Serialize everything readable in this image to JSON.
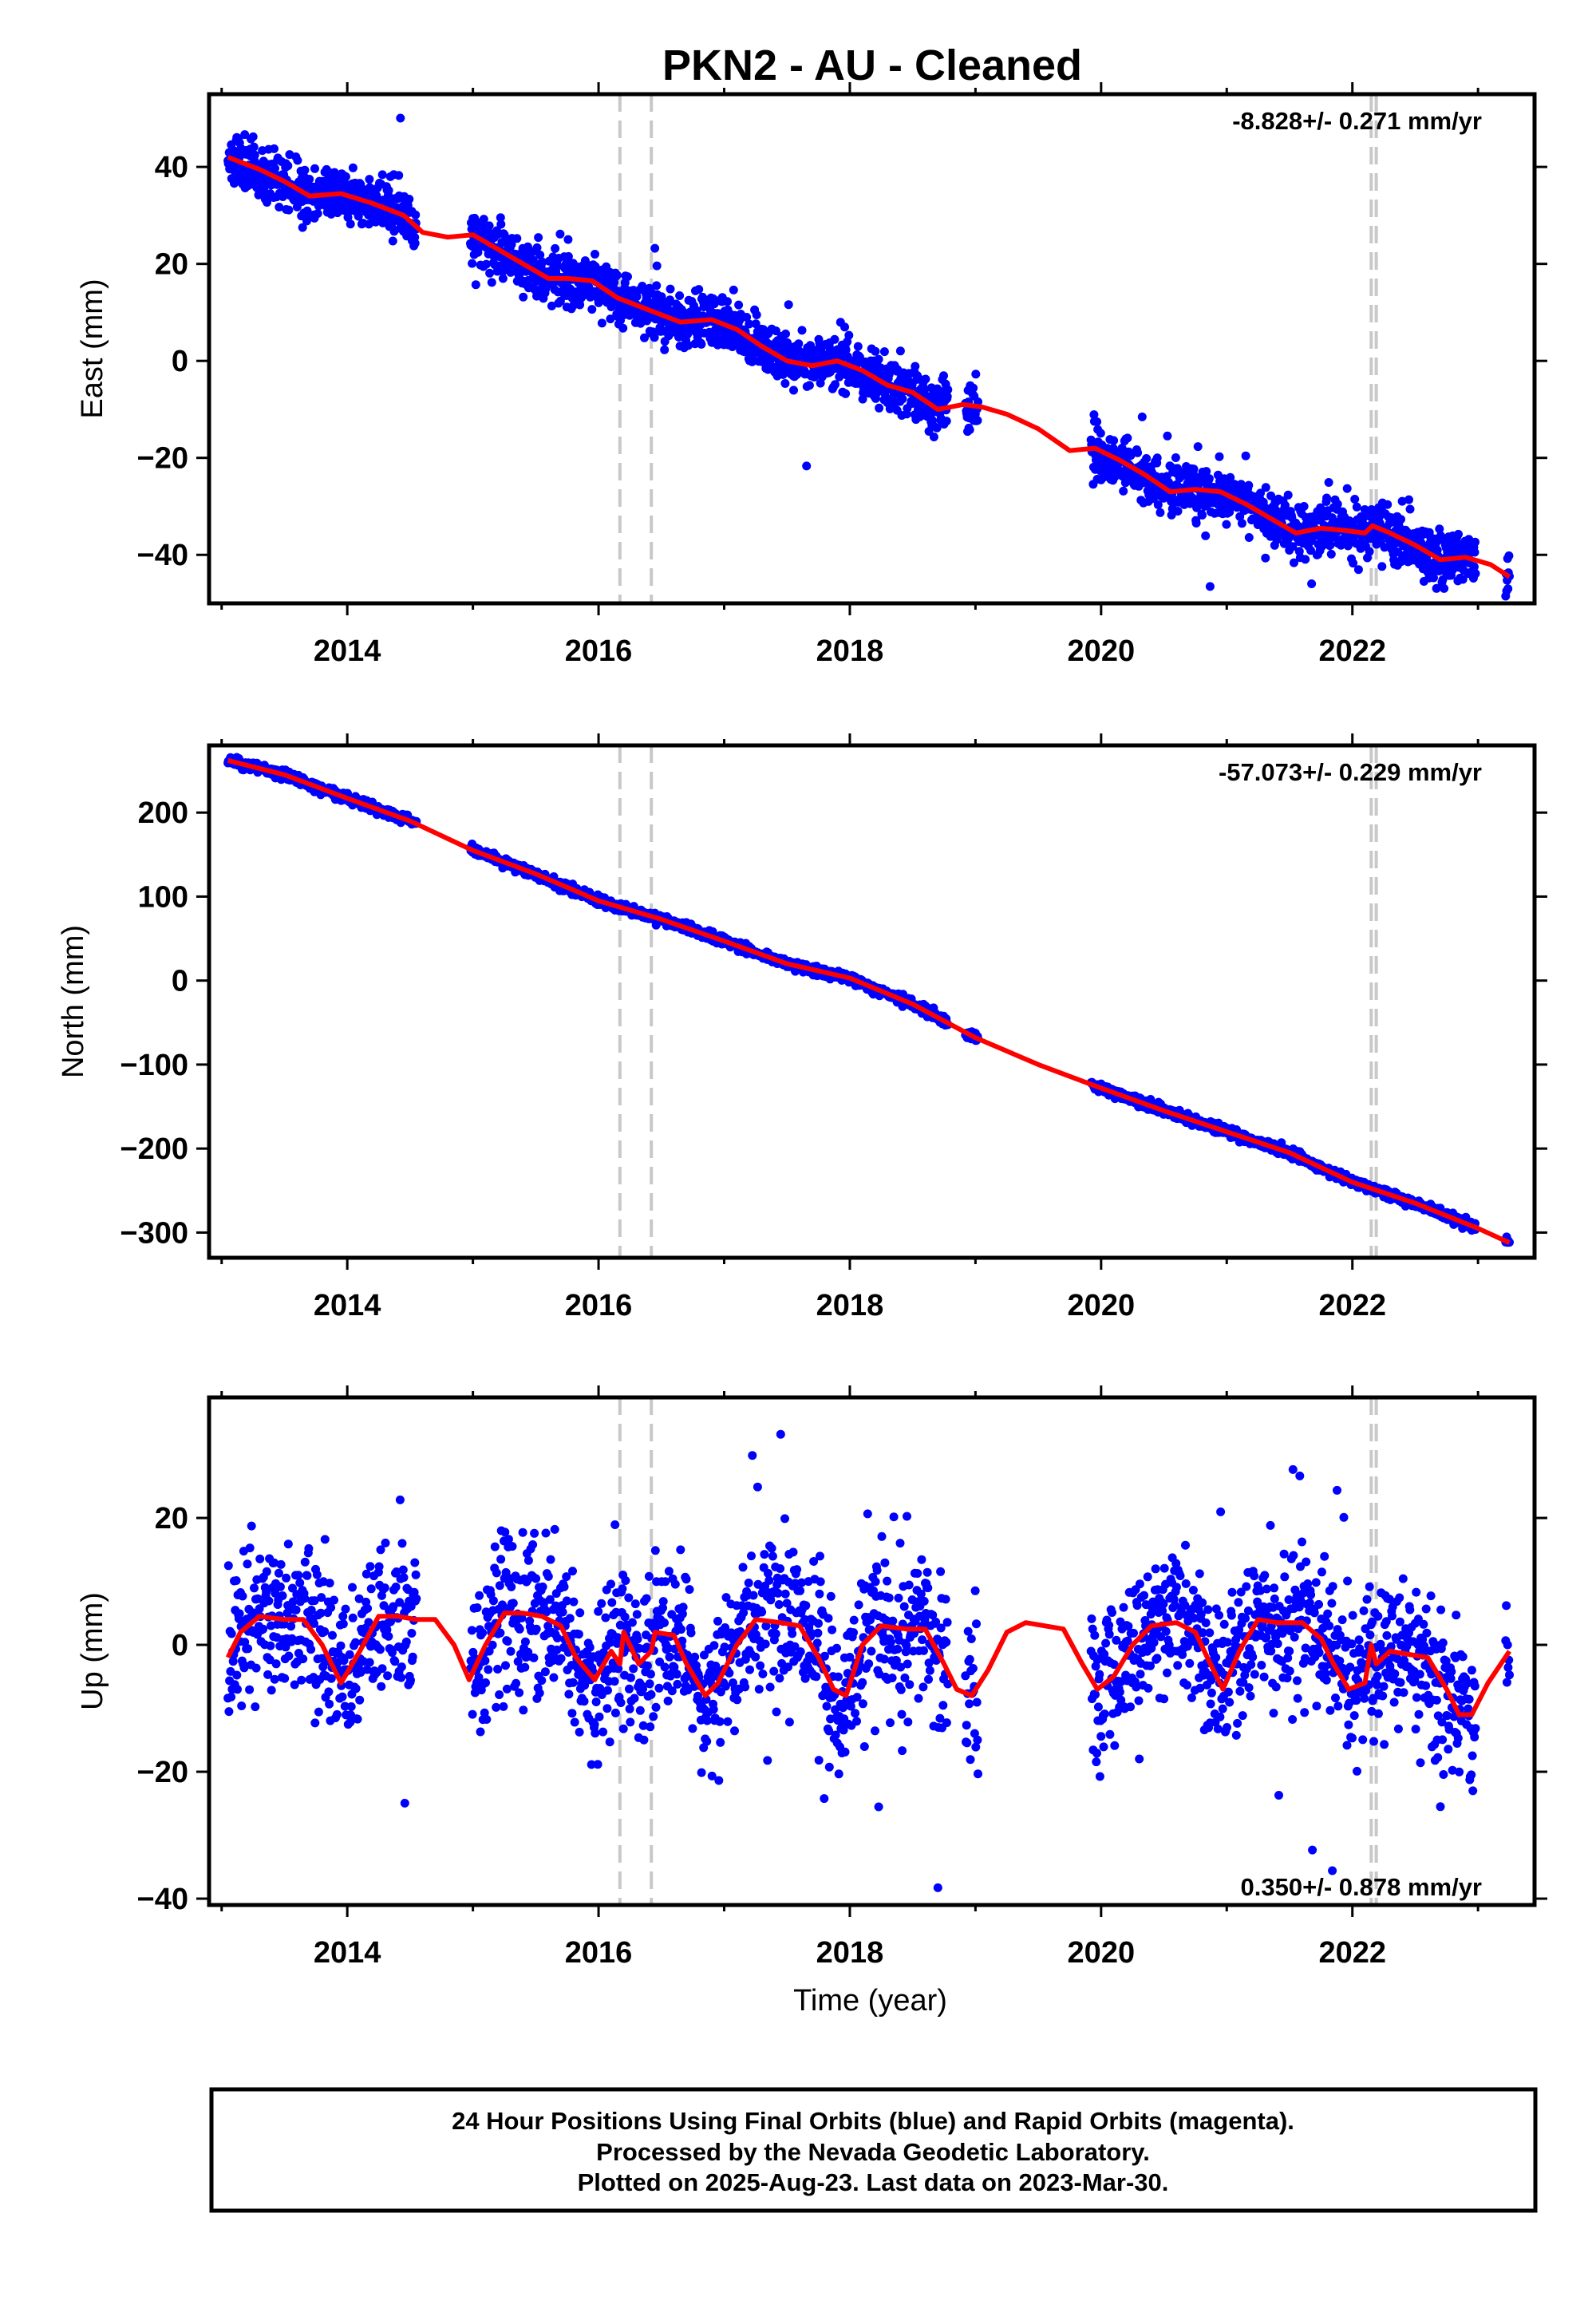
{
  "title": "PKN2  - AU - Cleaned",
  "footer": {
    "line1": "24 Hour Positions Using Final Orbits (blue) and Rapid Orbits (magenta).",
    "line2": "Processed by the Nevada Geodetic Laboratory.",
    "line3": "Plotted on 2025-Aug-23. Last data on 2023-Mar-30."
  },
  "colors": {
    "data": "#0000ff",
    "model": "#ff0000",
    "events": "#c8c8c8",
    "axis": "#000000"
  },
  "chart_data": [
    {
      "type": "scatter",
      "ylabel": "East (mm)",
      "xlabel": "",
      "rate_label": "-8.828+/- 0.271 mm/yr",
      "xlim": [
        2012.9,
        2023.45
      ],
      "ylim": [
        -50,
        55
      ],
      "xticks": [
        2014,
        2016,
        2018,
        2020,
        2022
      ],
      "xtick_labels": [
        "2014",
        "2016",
        "2018",
        "2020",
        "2022"
      ],
      "yticks": [
        40,
        20,
        0,
        -20,
        -40
      ],
      "ytick_labels": [
        "40",
        "20",
        "0",
        "−20",
        "−40"
      ],
      "events": [
        2016.17,
        2016.42,
        2022.15,
        2022.19
      ],
      "data_segments": [
        [
          2013.05,
          2014.55
        ],
        [
          2014.98,
          2018.78
        ],
        [
          2018.92,
          2019.02
        ],
        [
          2019.92,
          2022.98
        ],
        [
          2023.22,
          2023.25
        ]
      ],
      "model_curve": {
        "x": [
          2013.05,
          2013.3,
          2013.5,
          2013.7,
          2013.95,
          2014.2,
          2014.45,
          2014.6,
          2014.8,
          2015.0,
          2015.2,
          2015.4,
          2015.6,
          2015.75,
          2015.95,
          2016.15,
          2016.3,
          2016.45,
          2016.65,
          2016.9,
          2017.1,
          2017.3,
          2017.5,
          2017.7,
          2017.9,
          2018.1,
          2018.3,
          2018.5,
          2018.7,
          2018.9,
          2019.05,
          2019.25,
          2019.5,
          2019.75,
          2019.95,
          2020.15,
          2020.35,
          2020.55,
          2020.75,
          2020.95,
          2021.15,
          2021.35,
          2021.55,
          2021.75,
          2021.95,
          2022.1,
          2022.16,
          2022.3,
          2022.5,
          2022.7,
          2022.9,
          2023.1,
          2023.25
        ],
        "y": [
          42,
          39.5,
          37,
          34,
          34.5,
          32.5,
          30,
          26.5,
          25.5,
          26,
          23,
          20,
          17,
          17,
          16.5,
          13,
          11.5,
          10,
          8,
          8.5,
          6.5,
          3,
          0,
          -1,
          0,
          -2,
          -5,
          -6.5,
          -10,
          -9,
          -9.5,
          -11,
          -14,
          -18.5,
          -18,
          -20.5,
          -23.5,
          -27,
          -26.5,
          -27,
          -29.5,
          -32.5,
          -35.5,
          -34.5,
          -35,
          -35.5,
          -34,
          -35.5,
          -38,
          -41,
          -40.5,
          -42,
          -44.5
        ]
      },
      "scatter": {
        "noise": 2.6,
        "density": 300,
        "outlier_rate": 0.02,
        "outlier_scale": 2.5,
        "seed": 11
      }
    },
    {
      "type": "scatter",
      "ylabel": "North (mm)",
      "xlabel": "",
      "rate_label": "-57.073+/- 0.229 mm/yr",
      "xlim": [
        2012.9,
        2023.45
      ],
      "ylim": [
        -330,
        280
      ],
      "xticks": [
        2014,
        2016,
        2018,
        2020,
        2022
      ],
      "xtick_labels": [
        "2014",
        "2016",
        "2018",
        "2020",
        "2022"
      ],
      "yticks": [
        200,
        100,
        0,
        -100,
        -200,
        -300
      ],
      "ytick_labels": [
        "200",
        "100",
        "0",
        "−100",
        "−200",
        "−300"
      ],
      "events": [
        2016.17,
        2016.42,
        2022.15,
        2022.19
      ],
      "data_segments": [
        [
          2013.05,
          2014.55
        ],
        [
          2014.98,
          2018.78
        ],
        [
          2018.92,
          2019.02
        ],
        [
          2019.92,
          2022.98
        ],
        [
          2023.22,
          2023.25
        ]
      ],
      "model_curve": {
        "x": [
          2013.05,
          2013.5,
          2014.0,
          2014.5,
          2015.0,
          2015.5,
          2016.0,
          2016.5,
          2017.0,
          2017.5,
          2018.0,
          2018.5,
          2019.0,
          2019.5,
          2020.0,
          2020.5,
          2021.0,
          2021.5,
          2022.0,
          2022.5,
          2023.0,
          2023.25
        ],
        "y": [
          262,
          245,
          217,
          190,
          155,
          127,
          95,
          73,
          47,
          20,
          3,
          -28,
          -68,
          -100,
          -128,
          -155,
          -180,
          -205,
          -240,
          -265,
          -295,
          -312
        ]
      },
      "scatter": {
        "noise": 2.6,
        "density": 300,
        "outlier_rate": 0.0,
        "outlier_scale": 1,
        "seed": 23
      }
    },
    {
      "type": "scatter",
      "ylabel": "Up (mm)",
      "xlabel": "Time (year)",
      "rate_label": "0.350+/- 0.878 mm/yr",
      "xlim": [
        2012.9,
        2023.45
      ],
      "ylim": [
        -41,
        39
      ],
      "xticks": [
        2014,
        2016,
        2018,
        2020,
        2022
      ],
      "xtick_labels": [
        "2014",
        "2016",
        "2018",
        "2020",
        "2022"
      ],
      "yticks": [
        20,
        0,
        -20,
        -40
      ],
      "ytick_labels": [
        "20",
        "0",
        "−20",
        "−40"
      ],
      "events": [
        2016.17,
        2016.42,
        2022.15,
        2022.19
      ],
      "data_segments": [
        [
          2013.05,
          2014.55
        ],
        [
          2014.98,
          2018.78
        ],
        [
          2018.92,
          2019.02
        ],
        [
          2019.92,
          2022.98
        ],
        [
          2023.22,
          2023.25
        ]
      ],
      "model_curve": {
        "x": [
          2013.05,
          2013.15,
          2013.3,
          2013.5,
          2013.65,
          2013.8,
          2013.95,
          2014.1,
          2014.25,
          2014.4,
          2014.55,
          2014.7,
          2014.85,
          2014.97,
          2015.1,
          2015.25,
          2015.4,
          2015.55,
          2015.7,
          2015.82,
          2015.97,
          2016.1,
          2016.17,
          2016.2,
          2016.32,
          2016.42,
          2016.45,
          2016.6,
          2016.7,
          2016.85,
          2016.95,
          2017.1,
          2017.25,
          2017.45,
          2017.6,
          2017.75,
          2017.87,
          2017.97,
          2018.1,
          2018.25,
          2018.45,
          2018.6,
          2018.75,
          2018.85,
          2018.97,
          2019.1,
          2019.25,
          2019.4,
          2019.55,
          2019.7,
          2019.85,
          2019.97,
          2020.1,
          2020.25,
          2020.4,
          2020.6,
          2020.75,
          2020.87,
          2020.97,
          2021.1,
          2021.25,
          2021.4,
          2021.6,
          2021.75,
          2021.85,
          2021.97,
          2022.1,
          2022.15,
          2022.19,
          2022.3,
          2022.45,
          2022.6,
          2022.75,
          2022.85,
          2022.95,
          2023.08,
          2023.25
        ],
        "y": [
          -2,
          2,
          4.5,
          4,
          4,
          0,
          -6,
          -1,
          4.5,
          4.5,
          4,
          4,
          0,
          -5.5,
          0,
          5,
          5,
          4.5,
          3,
          -2,
          -5.5,
          -1,
          -3,
          2,
          -3,
          -1,
          2,
          1.5,
          -3,
          -8,
          -6,
          0,
          4,
          3.5,
          3,
          -2,
          -7,
          -8,
          0,
          3,
          2.5,
          2.5,
          -3,
          -7,
          -8,
          -4,
          2,
          3.5,
          3,
          2.5,
          -3,
          -7,
          -5,
          0,
          3,
          3.5,
          2,
          -3,
          -7,
          -1,
          4,
          3.5,
          3.5,
          1,
          -3,
          -7,
          -6,
          0,
          -3,
          -1,
          -1.5,
          -2,
          -7,
          -11,
          -11,
          -6,
          -1
        ]
      },
      "scatter": {
        "noise": 5.8,
        "density": 240,
        "outlier_rate": 0.04,
        "outlier_scale": 2.5,
        "seed": 37
      }
    }
  ]
}
